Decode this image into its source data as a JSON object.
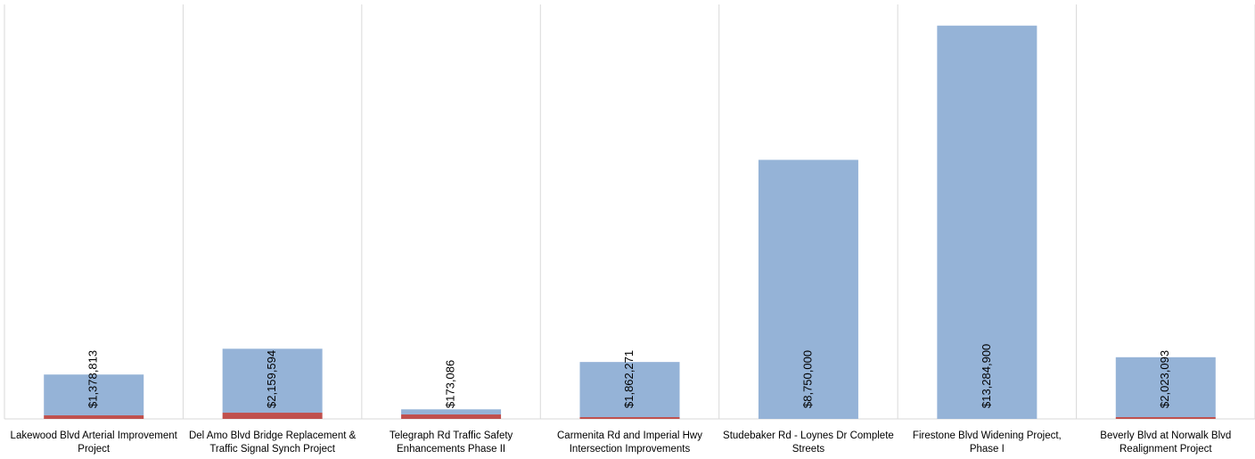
{
  "chart_data": {
    "type": "bar",
    "stacked": true,
    "categories": [
      "Lakewood Blvd Arterial Improvement Project",
      "Del Amo Blvd Bridge Replacement & Traffic Signal Synch Project",
      "Telegraph Rd Traffic Safety Enhancements Phase II",
      "Carmenita Rd and Imperial Hwy Intersection Improvements",
      "Studebaker Rd - Loynes Dr Complete Streets",
      "Firestone Blvd Widening Project, Phase I",
      "Beverly Blvd at Norwalk Blvd Realignment Project"
    ],
    "series": [
      {
        "color": "#c0504d",
        "values": [
          120000,
          210000,
          150000,
          60000,
          0,
          0,
          60000
        ]
      },
      {
        "color": "#95b3d7",
        "values": [
          1378813,
          2159594,
          173086,
          1862271,
          8750000,
          13284900,
          2023093
        ],
        "value_labels": [
          "$1,378,813",
          "$2,159,594",
          "$173,086",
          "$1,862,271",
          "$8,750,000",
          "$13,284,900",
          "$2,023,093"
        ]
      }
    ],
    "ylim": [
      0,
      14000000
    ]
  }
}
